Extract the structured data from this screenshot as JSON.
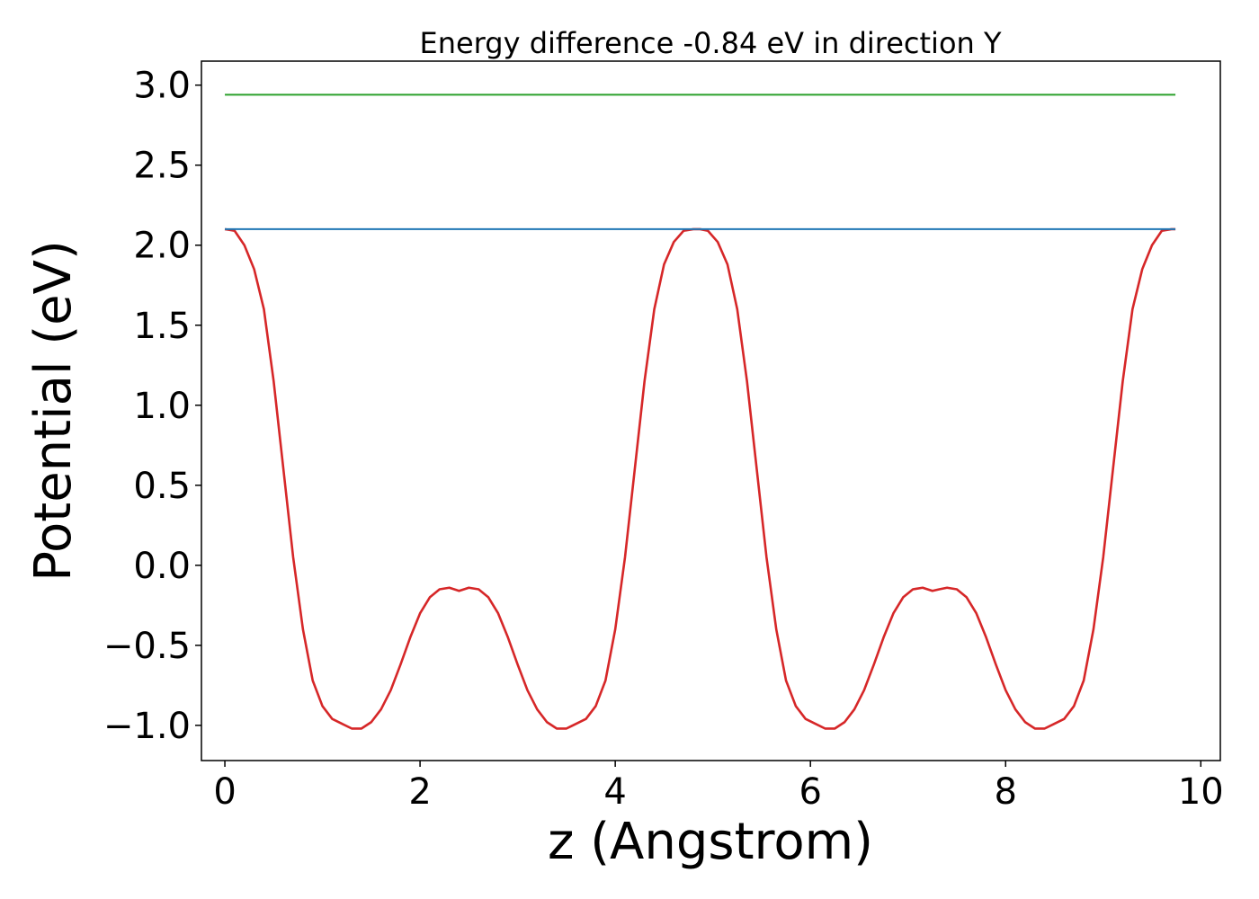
{
  "chart_data": {
    "type": "line",
    "title": "Energy difference -0.84 eV in direction Y",
    "xlabel": "z (Angstrom)",
    "ylabel": "Potential (eV)",
    "xlim": [
      -0.24,
      10.2
    ],
    "ylim": [
      -1.22,
      3.15
    ],
    "xticks": [
      0,
      2,
      4,
      6,
      8,
      10
    ],
    "yticks": [
      -1.0,
      -0.5,
      0.0,
      0.5,
      1.0,
      1.5,
      2.0,
      2.5,
      3.0
    ],
    "xtick_labels": [
      "0",
      "2",
      "4",
      "6",
      "8",
      "10"
    ],
    "ytick_labels": [
      "−1.0",
      "−0.5",
      "0.0",
      "0.5",
      "1.0",
      "1.5",
      "2.0",
      "2.5",
      "3.0"
    ],
    "grid": false,
    "colors": {
      "potential": "#d62728",
      "level_low": "#1f77b4",
      "level_high": "#2ca02c"
    },
    "series": [
      {
        "key": "potential",
        "x": [
          0.0,
          0.1,
          0.2,
          0.3,
          0.4,
          0.5,
          0.6,
          0.7,
          0.8,
          0.9,
          1.0,
          1.1,
          1.2,
          1.3,
          1.4,
          1.5,
          1.6,
          1.7,
          1.8,
          1.9,
          2.0,
          2.1,
          2.2,
          2.3,
          2.4,
          2.45,
          2.5,
          2.6,
          2.7,
          2.8,
          2.9,
          3.0,
          3.1,
          3.2,
          3.3,
          3.4,
          3.5,
          3.6,
          3.7,
          3.8,
          3.9,
          4.0,
          4.1,
          4.2,
          4.3,
          4.4,
          4.5,
          4.6,
          4.7,
          4.8,
          4.87,
          4.95,
          5.05,
          5.15,
          5.25,
          5.35,
          5.45,
          5.55,
          5.65,
          5.75,
          5.85,
          5.95,
          6.05,
          6.15,
          6.25,
          6.35,
          6.45,
          6.55,
          6.65,
          6.75,
          6.85,
          6.95,
          7.05,
          7.15,
          7.25,
          7.32,
          7.4,
          7.5,
          7.6,
          7.7,
          7.8,
          7.9,
          8.0,
          8.1,
          8.2,
          8.3,
          8.4,
          8.5,
          8.6,
          8.7,
          8.8,
          8.9,
          9.0,
          9.1,
          9.2,
          9.3,
          9.4,
          9.5,
          9.6,
          9.7,
          9.74
        ],
        "y": [
          2.1,
          2.09,
          2.0,
          1.85,
          1.6,
          1.15,
          0.6,
          0.05,
          -0.4,
          -0.72,
          -0.88,
          -0.96,
          -0.99,
          -1.02,
          -1.02,
          -0.98,
          -0.9,
          -0.78,
          -0.62,
          -0.45,
          -0.3,
          -0.2,
          -0.15,
          -0.14,
          -0.16,
          -0.15,
          -0.14,
          -0.15,
          -0.2,
          -0.3,
          -0.45,
          -0.62,
          -0.78,
          -0.9,
          -0.98,
          -1.02,
          -1.02,
          -0.99,
          -0.96,
          -0.88,
          -0.72,
          -0.4,
          0.05,
          0.6,
          1.15,
          1.6,
          1.88,
          2.02,
          2.09,
          2.1,
          2.1,
          2.09,
          2.02,
          1.88,
          1.6,
          1.15,
          0.6,
          0.05,
          -0.4,
          -0.72,
          -0.88,
          -0.96,
          -0.99,
          -1.02,
          -1.02,
          -0.98,
          -0.9,
          -0.78,
          -0.62,
          -0.45,
          -0.3,
          -0.2,
          -0.15,
          -0.14,
          -0.16,
          -0.15,
          -0.14,
          -0.15,
          -0.2,
          -0.3,
          -0.45,
          -0.62,
          -0.78,
          -0.9,
          -0.98,
          -1.02,
          -1.02,
          -0.99,
          -0.96,
          -0.88,
          -0.72,
          -0.4,
          0.05,
          0.6,
          1.15,
          1.6,
          1.85,
          2.0,
          2.09,
          2.1,
          2.1
        ]
      },
      {
        "key": "level_low",
        "x": [
          0.0,
          9.74
        ],
        "y": [
          2.1,
          2.1
        ]
      },
      {
        "key": "level_high",
        "x": [
          0.0,
          9.74
        ],
        "y": [
          2.94,
          2.94
        ]
      }
    ]
  }
}
